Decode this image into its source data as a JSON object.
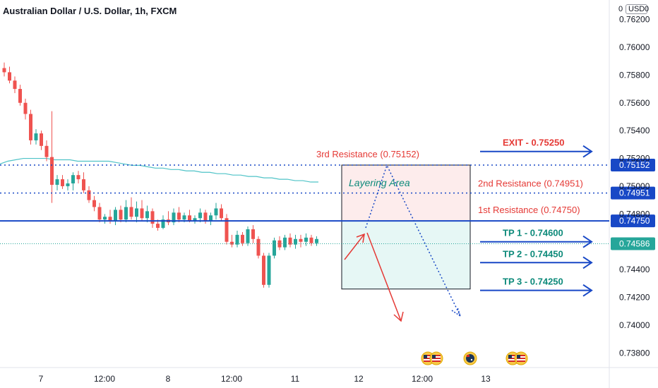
{
  "header": {
    "title": "Australian Dollar / U.S. Dollar, 1h, FXCM",
    "currency": "USD",
    "top_price_fragment_left": "0",
    "top_price_fragment_right": "0"
  },
  "chart_data": {
    "type": "candlestick",
    "ylim": [
      0.737,
      0.7634
    ],
    "y_ticks": [
      {
        "v": 0.762,
        "label": "0.76200"
      },
      {
        "v": 0.76,
        "label": "0.76000"
      },
      {
        "v": 0.758,
        "label": "0.75800"
      },
      {
        "v": 0.756,
        "label": "0.75600"
      },
      {
        "v": 0.754,
        "label": "0.75400"
      },
      {
        "v": 0.752,
        "label": "0.75200"
      },
      {
        "v": 0.75,
        "label": "0.75000"
      },
      {
        "v": 0.748,
        "label": "0.74800"
      },
      {
        "v": 0.744,
        "label": "0.74400"
      },
      {
        "v": 0.742,
        "label": "0.74200"
      },
      {
        "v": 0.74,
        "label": "0.74000"
      },
      {
        "v": 0.738,
        "label": "0.73800"
      }
    ],
    "x_ticks": [
      {
        "i": 0,
        "label": "7"
      },
      {
        "i": 12,
        "label": "12:00"
      },
      {
        "i": 24,
        "label": "8"
      },
      {
        "i": 36,
        "label": "12:00"
      },
      {
        "i": 48,
        "label": "11"
      },
      {
        "i": 60,
        "label": "12"
      },
      {
        "i": 72,
        "label": "12:00"
      },
      {
        "i": 84,
        "label": "13"
      }
    ],
    "candles": [
      [
        0.7585,
        0.7589,
        0.7579,
        0.7582
      ],
      [
        0.7582,
        0.7586,
        0.7574,
        0.7576
      ],
      [
        0.7576,
        0.7579,
        0.7567,
        0.757
      ],
      [
        0.757,
        0.7573,
        0.7558,
        0.756
      ],
      [
        0.756,
        0.7563,
        0.7548,
        0.7552
      ],
      [
        0.7552,
        0.7555,
        0.753,
        0.7533
      ],
      [
        0.7533,
        0.7541,
        0.753,
        0.7538
      ],
      [
        0.7538,
        0.754,
        0.7526,
        0.7529
      ],
      [
        0.7529,
        0.7533,
        0.7518,
        0.7521
      ],
      [
        0.7521,
        0.7554,
        0.7488,
        0.7501
      ],
      [
        0.7501,
        0.7508,
        0.7497,
        0.7505
      ],
      [
        0.7505,
        0.7508,
        0.7498,
        0.75
      ],
      [
        0.75,
        0.7505,
        0.7497,
        0.7502
      ],
      [
        0.7502,
        0.751,
        0.7497,
        0.7508
      ],
      [
        0.7508,
        0.7511,
        0.7502,
        0.7505
      ],
      [
        0.7505,
        0.751,
        0.7495,
        0.7497
      ],
      [
        0.7497,
        0.75,
        0.7488,
        0.749
      ],
      [
        0.749,
        0.7493,
        0.7482,
        0.7485
      ],
      [
        0.7485,
        0.7488,
        0.7474,
        0.7476
      ],
      [
        0.7476,
        0.748,
        0.7473,
        0.7478
      ],
      [
        0.7478,
        0.7483,
        0.7473,
        0.7475
      ],
      [
        0.7475,
        0.7485,
        0.7472,
        0.7483
      ],
      [
        0.7483,
        0.7486,
        0.7474,
        0.7476
      ],
      [
        0.7476,
        0.749,
        0.7474,
        0.7485
      ],
      [
        0.7485,
        0.7492,
        0.7476,
        0.7478
      ],
      [
        0.7478,
        0.7489,
        0.7474,
        0.7484
      ],
      [
        0.7484,
        0.749,
        0.7475,
        0.7477
      ],
      [
        0.7477,
        0.7486,
        0.7474,
        0.7482
      ],
      [
        0.7482,
        0.7484,
        0.747,
        0.7473
      ],
      [
        0.7473,
        0.7476,
        0.7468,
        0.747
      ],
      [
        0.747,
        0.7479,
        0.7469,
        0.7476
      ],
      [
        0.7476,
        0.7482,
        0.7472,
        0.7474
      ],
      [
        0.7474,
        0.7484,
        0.7472,
        0.7481
      ],
      [
        0.7481,
        0.7485,
        0.7474,
        0.7476
      ],
      [
        0.7476,
        0.7481,
        0.7474,
        0.7479
      ],
      [
        0.7479,
        0.7483,
        0.7474,
        0.7475
      ],
      [
        0.7475,
        0.7479,
        0.7473,
        0.7477
      ],
      [
        0.7477,
        0.7484,
        0.7474,
        0.7481
      ],
      [
        0.7481,
        0.7483,
        0.7473,
        0.7475
      ],
      [
        0.7475,
        0.7481,
        0.7472,
        0.7479
      ],
      [
        0.7479,
        0.7488,
        0.7476,
        0.7484
      ],
      [
        0.7484,
        0.7487,
        0.7475,
        0.7477
      ],
      [
        0.7477,
        0.748,
        0.7458,
        0.746
      ],
      [
        0.746,
        0.7465,
        0.7456,
        0.7458
      ],
      [
        0.7458,
        0.7468,
        0.7456,
        0.7465
      ],
      [
        0.7465,
        0.7467,
        0.7457,
        0.7459
      ],
      [
        0.7459,
        0.7471,
        0.7457,
        0.7469
      ],
      [
        0.7469,
        0.7472,
        0.7459,
        0.7462
      ],
      [
        0.7462,
        0.7464,
        0.7448,
        0.745
      ],
      [
        0.745,
        0.7452,
        0.7427,
        0.7429
      ],
      [
        0.7429,
        0.7452,
        0.7427,
        0.745
      ],
      [
        0.745,
        0.7463,
        0.7448,
        0.7461
      ],
      [
        0.7461,
        0.7464,
        0.7454,
        0.7456
      ],
      [
        0.7456,
        0.7465,
        0.7454,
        0.7463
      ],
      [
        0.7463,
        0.7466,
        0.7456,
        0.7458
      ],
      [
        0.7458,
        0.7465,
        0.7455,
        0.7462
      ],
      [
        0.7462,
        0.7465,
        0.7456,
        0.746
      ],
      [
        0.746,
        0.7466,
        0.7457,
        0.7463
      ],
      [
        0.7463,
        0.7465,
        0.7457,
        0.7459
      ],
      [
        0.7459,
        0.7464,
        0.7457,
        0.7462
      ]
    ],
    "moving_average": [
      0.7516,
      0.7518,
      0.7519,
      0.752,
      0.752,
      0.752,
      0.752,
      0.7519,
      0.7519,
      0.7519,
      0.7518,
      0.7518,
      0.7518,
      0.7518,
      0.7518,
      0.7517,
      0.7516,
      0.7515,
      0.7515,
      0.7514,
      0.7513,
      0.7513,
      0.7512,
      0.7512,
      0.7511,
      0.7511,
      0.751,
      0.751,
      0.7509,
      0.7509,
      0.7508,
      0.7508,
      0.7507,
      0.7507,
      0.7506,
      0.7506,
      0.7505,
      0.7505,
      0.7504,
      0.7504,
      0.7503,
      0.7503
    ],
    "levels": {
      "exit": {
        "value": 0.7525,
        "label": "EXIT - 0.75250"
      },
      "resistance3": {
        "value": 0.75152,
        "label": "3rd Resistance (0.75152)",
        "axis_label": "0.75152"
      },
      "resistance2": {
        "value": 0.74951,
        "label": "2nd Resistance (0.74951)",
        "axis_label": "0.74951"
      },
      "resistance1": {
        "value": 0.7475,
        "label": "1st Resistance (0.74750)",
        "axis_label": "0.74750"
      },
      "current": {
        "value": 0.74586,
        "axis_label": "0.74586"
      },
      "tp1": {
        "value": 0.746,
        "label": "TP 1 - 0.74600"
      },
      "tp2": {
        "value": 0.7445,
        "label": "TP 2 - 0.74450"
      },
      "tp3": {
        "value": 0.7425,
        "label": "TP 3 - 0.74250"
      }
    },
    "layering_area": {
      "label": "Layering Area",
      "top": 0.75152,
      "mid": 0.7475,
      "bottom": 0.7426
    },
    "colors": {
      "up": "#26a69a",
      "down": "#ef5350",
      "level_line": "#1848c6",
      "resistance_text": "#e53935",
      "tp_text": "#0d8a7a",
      "exit_text": "#e53935",
      "ma": "#4fc3c7",
      "layering_text": "#0d8a7a",
      "current_line": "#26a69a",
      "zone_red": "#fdecec",
      "zone_green": "#e6f7f5"
    },
    "events": [
      {
        "time_index": 64,
        "flags": [
          "us-flag-icon",
          "us-flag-icon"
        ]
      },
      {
        "time_index": 72,
        "flags": [
          "au-flag-icon"
        ]
      },
      {
        "time_index": 80,
        "flags": [
          "us-flag-icon",
          "us-flag-icon"
        ]
      }
    ]
  }
}
